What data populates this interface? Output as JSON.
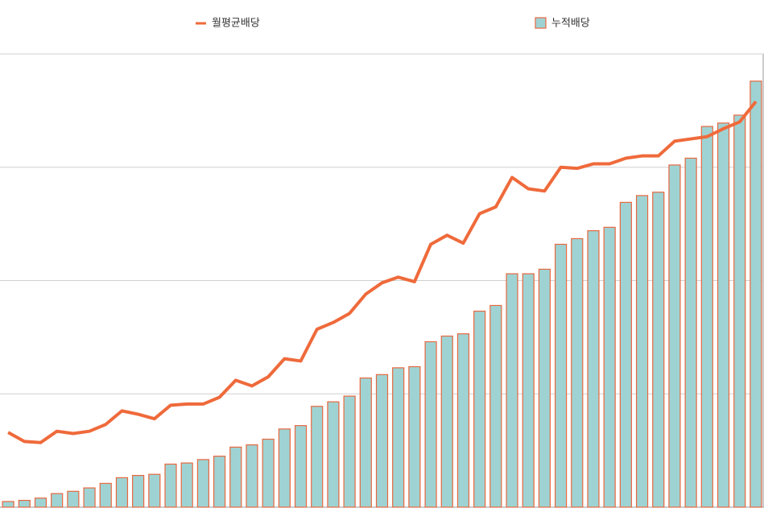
{
  "chart_data": {
    "type": "bar-line",
    "series": [
      {
        "name": "월평균배당",
        "type": "line",
        "color": "#ef6a3b",
        "values": [
          0.66,
          0.58,
          0.57,
          0.67,
          0.65,
          0.67,
          0.73,
          0.85,
          0.82,
          0.78,
          0.9,
          0.91,
          0.91,
          0.97,
          1.12,
          1.07,
          1.15,
          1.31,
          1.29,
          1.57,
          1.63,
          1.71,
          1.88,
          1.98,
          2.03,
          1.99,
          2.32,
          2.4,
          2.33,
          2.59,
          2.65,
          2.91,
          2.81,
          2.79,
          3.0,
          2.99,
          3.03,
          3.03,
          3.08,
          3.1,
          3.1,
          3.23,
          3.25,
          3.27,
          3.34,
          3.4,
          3.58
        ]
      },
      {
        "name": "누적배당",
        "type": "bar",
        "color": "#9fd3d3",
        "edge_color": "#e8683f",
        "values": [
          0.05,
          0.06,
          0.08,
          0.12,
          0.14,
          0.17,
          0.21,
          0.26,
          0.28,
          0.29,
          0.38,
          0.39,
          0.42,
          0.45,
          0.53,
          0.55,
          0.6,
          0.69,
          0.72,
          0.89,
          0.93,
          0.98,
          1.14,
          1.17,
          1.23,
          1.24,
          1.46,
          1.51,
          1.53,
          1.73,
          1.78,
          2.06,
          2.06,
          2.1,
          2.32,
          2.37,
          2.44,
          2.47,
          2.69,
          2.75,
          2.78,
          3.02,
          3.08,
          3.36,
          3.39,
          3.46,
          3.76
        ]
      }
    ],
    "ylim": [
      0,
      4
    ],
    "yticks": [
      1,
      2,
      3,
      4
    ],
    "grid": true
  }
}
